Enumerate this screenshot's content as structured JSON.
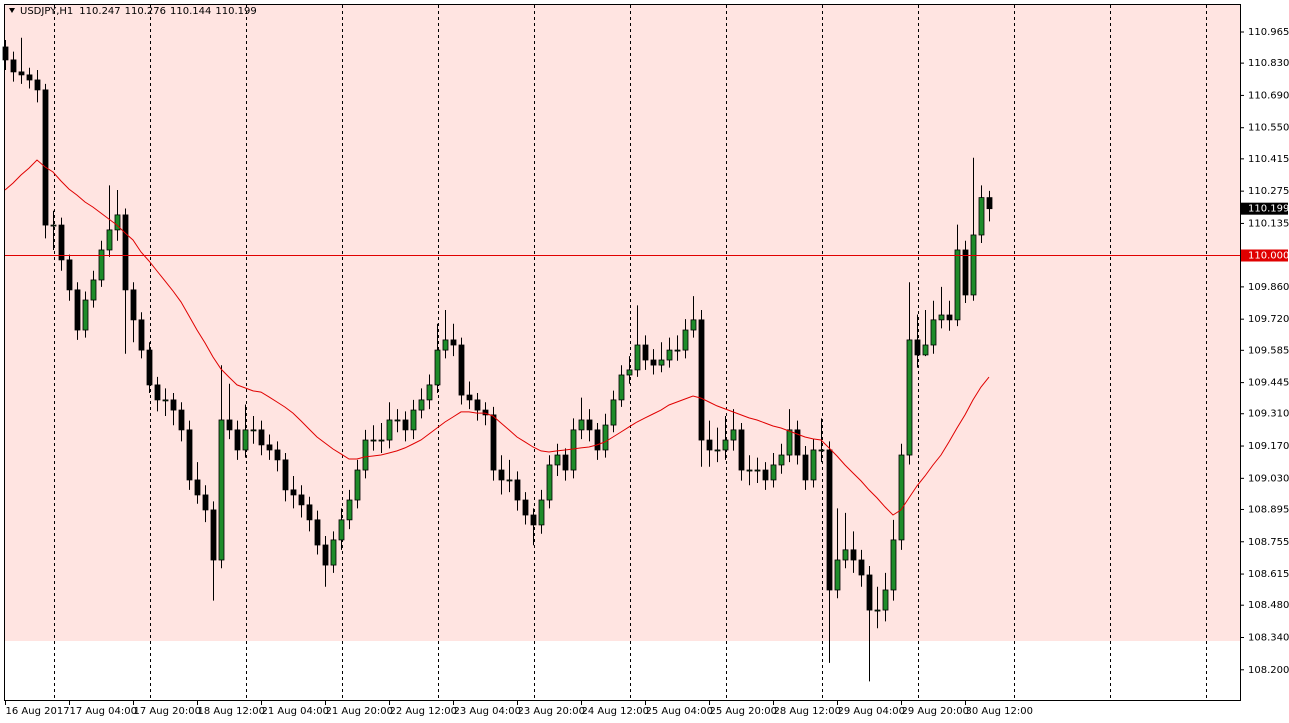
{
  "chart_data": {
    "type": "candlestick",
    "title": "USDJPY,H1",
    "ohlc_readout": [
      110.247,
      110.276,
      110.144,
      110.199
    ],
    "up_color": "#1e8c2a",
    "down_color": "#000000",
    "xlim": [
      -0.625,
      154.375
    ],
    "ylim": [
      108.069,
      111.082
    ],
    "xticks": [
      {
        "value": 0,
        "label": "16 Aug 2017"
      },
      {
        "value": 8,
        "label": "17 Aug 04:00"
      },
      {
        "value": 16,
        "label": "17 Aug 20:00"
      },
      {
        "value": 24,
        "label": "18 Aug 12:00"
      },
      {
        "value": 32,
        "label": "21 Aug 04:00"
      },
      {
        "value": 40,
        "label": "21 Aug 20:00"
      },
      {
        "value": 48,
        "label": "22 Aug 12:00"
      },
      {
        "value": 56,
        "label": "23 Aug 04:00"
      },
      {
        "value": 64,
        "label": "23 Aug 20:00"
      },
      {
        "value": 72,
        "label": "24 Aug 12:00"
      },
      {
        "value": 80,
        "label": "25 Aug 04:00"
      },
      {
        "value": 88,
        "label": "25 Aug 20:00"
      },
      {
        "value": 96,
        "label": "28 Aug 12:00"
      },
      {
        "value": 104,
        "label": "29 Aug 04:00"
      },
      {
        "value": 112,
        "label": "29 Aug 20:00"
      },
      {
        "value": 120,
        "label": "30 Aug 12:00"
      }
    ],
    "yticks": [
      110.965,
      {
        "value": 110.83,
        "label": "110.830"
      },
      {
        "value": 110.69,
        "label": "110.690"
      },
      {
        "value": 110.55,
        "label": "110.550"
      },
      110.415,
      110.275,
      110.135,
      {
        "value": 109.86,
        "label": "109.860"
      },
      {
        "value": 109.72,
        "label": "109.720"
      },
      109.585,
      109.445,
      {
        "value": 109.31,
        "label": "109.310"
      },
      {
        "value": 109.17,
        "label": "109.170"
      },
      {
        "value": 109.03,
        "label": "109.030"
      },
      108.895,
      108.755,
      108.615,
      {
        "value": 108.48,
        "label": "108.480"
      },
      {
        "value": 108.34,
        "label": "108.340"
      },
      {
        "value": 108.2,
        "label": "108.200"
      }
    ],
    "hline": {
      "value": 110,
      "label": "110.000",
      "color": "#e00000"
    },
    "last_price": 110.199,
    "moving_average": {
      "color": "#e00000",
      "values": [
        110.28,
        110.31,
        110.345,
        110.375,
        110.41,
        110.38,
        110.358,
        110.319,
        110.284,
        110.258,
        110.228,
        110.206,
        110.18,
        110.154,
        110.128,
        110.094,
        110.063,
        110.011,
        109.972,
        109.929,
        109.886,
        109.842,
        109.795,
        109.734,
        109.673,
        109.617,
        109.556,
        109.504,
        109.469,
        109.435,
        109.422,
        109.409,
        109.404,
        109.383,
        109.361,
        109.339,
        109.313,
        109.279,
        109.244,
        109.209,
        109.183,
        109.157,
        109.136,
        109.114,
        109.114,
        109.123,
        109.127,
        109.131,
        109.14,
        109.149,
        109.162,
        109.179,
        109.196,
        109.222,
        109.248,
        109.274,
        109.296,
        109.318,
        109.318,
        109.313,
        109.313,
        109.3,
        109.27,
        109.24,
        109.209,
        109.188,
        109.166,
        109.149,
        109.144,
        109.149,
        109.153,
        109.157,
        109.162,
        109.166,
        109.175,
        109.188,
        109.209,
        109.231,
        109.253,
        109.274,
        109.292,
        109.309,
        109.326,
        109.348,
        109.361,
        109.374,
        109.387,
        109.378,
        109.361,
        109.344,
        109.331,
        109.318,
        109.305,
        109.292,
        109.283,
        109.27,
        109.257,
        109.248,
        109.235,
        109.222,
        109.209,
        109.201,
        109.196,
        109.162,
        109.127,
        109.088,
        109.053,
        109.019,
        108.98,
        108.945,
        108.906,
        108.871,
        108.893,
        108.945,
        108.997,
        109.04,
        109.088,
        109.131,
        109.188,
        109.248,
        109.305,
        109.37,
        109.426,
        109.469
      ]
    },
    "candles": [
      [
        110.9,
        110.93,
        110.8,
        110.844
      ],
      [
        110.844,
        110.88,
        110.75,
        110.792
      ],
      [
        110.792,
        110.94,
        110.74,
        110.779
      ],
      [
        110.779,
        110.81,
        110.72,
        110.757
      ],
      [
        110.757,
        110.8,
        110.66,
        110.714
      ],
      [
        110.714,
        110.74,
        110.07,
        110.128
      ],
      [
        110.128,
        110.19,
        110.02,
        110.128
      ],
      [
        110.128,
        110.16,
        109.93,
        109.977
      ],
      [
        109.977,
        110.0,
        109.8,
        109.847
      ],
      [
        109.847,
        109.88,
        109.63,
        109.673
      ],
      [
        109.673,
        109.84,
        109.64,
        109.803
      ],
      [
        109.803,
        109.93,
        109.77,
        109.89
      ],
      [
        109.89,
        110.06,
        109.86,
        110.02
      ],
      [
        110.02,
        110.3,
        109.99,
        110.107
      ],
      [
        110.107,
        110.28,
        110.06,
        110.172
      ],
      [
        110.172,
        110.2,
        109.57,
        109.847
      ],
      [
        109.847,
        109.88,
        109.62,
        109.717
      ],
      [
        109.717,
        109.75,
        109.55,
        109.586
      ],
      [
        109.586,
        109.62,
        109.4,
        109.435
      ],
      [
        109.435,
        109.47,
        109.32,
        109.37
      ],
      [
        109.37,
        109.42,
        109.3,
        109.37
      ],
      [
        109.37,
        109.4,
        109.26,
        109.326
      ],
      [
        109.326,
        109.36,
        109.19,
        109.24
      ],
      [
        109.24,
        109.28,
        108.98,
        109.023
      ],
      [
        109.023,
        109.1,
        108.92,
        108.958
      ],
      [
        108.958,
        109.0,
        108.84,
        108.893
      ],
      [
        108.893,
        108.93,
        108.5,
        108.676
      ],
      [
        108.676,
        109.52,
        108.64,
        109.283
      ],
      [
        109.283,
        109.44,
        109.2,
        109.24
      ],
      [
        109.24,
        109.28,
        109.11,
        109.153
      ],
      [
        109.153,
        109.35,
        109.12,
        109.24
      ],
      [
        109.24,
        109.3,
        109.18,
        109.24
      ],
      [
        109.24,
        109.28,
        109.13,
        109.175
      ],
      [
        109.175,
        109.22,
        109.11,
        109.153
      ],
      [
        109.153,
        109.19,
        109.06,
        109.11
      ],
      [
        109.11,
        109.14,
        108.93,
        108.98
      ],
      [
        108.98,
        109.04,
        108.9,
        108.958
      ],
      [
        108.958,
        109.0,
        108.86,
        108.915
      ],
      [
        108.915,
        108.95,
        108.8,
        108.85
      ],
      [
        108.85,
        108.89,
        108.7,
        108.741
      ],
      [
        108.741,
        108.78,
        108.56,
        108.654
      ],
      [
        108.654,
        108.8,
        108.62,
        108.763
      ],
      [
        108.763,
        108.9,
        108.72,
        108.85
      ],
      [
        108.85,
        108.98,
        108.81,
        108.936
      ],
      [
        108.936,
        109.11,
        108.9,
        109.066
      ],
      [
        109.066,
        109.24,
        109.03,
        109.196
      ],
      [
        109.196,
        109.26,
        109.15,
        109.196
      ],
      [
        109.196,
        109.27,
        109.14,
        109.196
      ],
      [
        109.196,
        109.36,
        109.16,
        109.283
      ],
      [
        109.283,
        109.33,
        109.23,
        109.283
      ],
      [
        109.283,
        109.32,
        109.19,
        109.24
      ],
      [
        109.24,
        109.37,
        109.2,
        109.326
      ],
      [
        109.326,
        109.42,
        109.29,
        109.37
      ],
      [
        109.37,
        109.48,
        109.33,
        109.435
      ],
      [
        109.435,
        109.7,
        109.4,
        109.586
      ],
      [
        109.586,
        109.76,
        109.55,
        109.63
      ],
      [
        109.63,
        109.7,
        109.56,
        109.608
      ],
      [
        109.608,
        109.64,
        109.35,
        109.391
      ],
      [
        109.391,
        109.45,
        109.33,
        109.37
      ],
      [
        109.37,
        109.4,
        109.28,
        109.326
      ],
      [
        109.326,
        109.36,
        109.26,
        109.305
      ],
      [
        109.305,
        109.34,
        109.02,
        109.066
      ],
      [
        109.066,
        109.13,
        108.96,
        109.023
      ],
      [
        109.023,
        109.11,
        108.97,
        109.023
      ],
      [
        109.023,
        109.06,
        108.89,
        108.936
      ],
      [
        108.936,
        108.97,
        108.83,
        108.871
      ],
      [
        108.871,
        108.9,
        108.74,
        108.828
      ],
      [
        108.828,
        108.98,
        108.79,
        108.936
      ],
      [
        108.936,
        109.13,
        108.9,
        109.088
      ],
      [
        109.088,
        109.18,
        109.04,
        109.131
      ],
      [
        109.131,
        109.16,
        109.02,
        109.066
      ],
      [
        109.066,
        109.29,
        109.03,
        109.24
      ],
      [
        109.24,
        109.38,
        109.2,
        109.283
      ],
      [
        109.283,
        109.33,
        109.19,
        109.24
      ],
      [
        109.24,
        109.27,
        109.11,
        109.153
      ],
      [
        109.153,
        109.31,
        109.12,
        109.261
      ],
      [
        109.261,
        109.41,
        109.23,
        109.37
      ],
      [
        109.37,
        109.52,
        109.34,
        109.478
      ],
      [
        109.478,
        109.56,
        109.44,
        109.5
      ],
      [
        109.5,
        109.78,
        109.47,
        109.608
      ],
      [
        109.608,
        109.65,
        109.5,
        109.543
      ],
      [
        109.543,
        109.59,
        109.48,
        109.521
      ],
      [
        109.521,
        109.62,
        109.49,
        109.543
      ],
      [
        109.543,
        109.64,
        109.51,
        109.586
      ],
      [
        109.586,
        109.65,
        109.54,
        109.586
      ],
      [
        109.586,
        109.72,
        109.55,
        109.673
      ],
      [
        109.673,
        109.82,
        109.64,
        109.717
      ],
      [
        109.717,
        109.76,
        109.08,
        109.196
      ],
      [
        109.196,
        109.28,
        109.08,
        109.153
      ],
      [
        109.153,
        109.25,
        109.1,
        109.153
      ],
      [
        109.153,
        109.3,
        109.11,
        109.196
      ],
      [
        109.196,
        109.33,
        109.15,
        109.24
      ],
      [
        109.24,
        109.27,
        109.02,
        109.066
      ],
      [
        109.066,
        109.13,
        109.0,
        109.066
      ],
      [
        109.066,
        109.12,
        109.01,
        109.066
      ],
      [
        109.066,
        109.1,
        108.98,
        109.023
      ],
      [
        109.023,
        109.14,
        108.99,
        109.088
      ],
      [
        109.088,
        109.18,
        109.05,
        109.131
      ],
      [
        109.131,
        109.33,
        109.1,
        109.24
      ],
      [
        109.24,
        109.28,
        109.09,
        109.131
      ],
      [
        109.131,
        109.17,
        108.98,
        109.023
      ],
      [
        109.023,
        109.2,
        108.99,
        109.153
      ],
      [
        109.153,
        109.29,
        109.1,
        109.153
      ],
      [
        109.153,
        109.19,
        108.23,
        108.546
      ],
      [
        108.546,
        108.9,
        108.51,
        108.676
      ],
      [
        108.676,
        108.88,
        108.64,
        108.72
      ],
      [
        108.72,
        108.8,
        108.62,
        108.676
      ],
      [
        108.676,
        108.72,
        108.56,
        108.611
      ],
      [
        108.611,
        108.65,
        108.15,
        108.459
      ],
      [
        108.459,
        108.56,
        108.38,
        108.459
      ],
      [
        108.459,
        108.62,
        108.41,
        108.546
      ],
      [
        108.546,
        108.85,
        108.5,
        108.763
      ],
      [
        108.763,
        109.18,
        108.72,
        109.131
      ],
      [
        109.131,
        109.88,
        109.09,
        109.63
      ],
      [
        109.63,
        109.74,
        109.51,
        109.565
      ],
      [
        109.565,
        109.76,
        109.56,
        109.608
      ],
      [
        109.608,
        109.8,
        109.57,
        109.717
      ],
      [
        109.717,
        109.86,
        109.68,
        109.738
      ],
      [
        109.738,
        109.8,
        109.67,
        109.717
      ],
      [
        109.717,
        110.13,
        109.69,
        110.02
      ],
      [
        110.02,
        110.06,
        109.79,
        109.825
      ],
      [
        109.825,
        110.42,
        109.8,
        110.085
      ],
      [
        110.085,
        110.3,
        110.05,
        110.247
      ],
      [
        110.247,
        110.276,
        110.144,
        110.199
      ]
    ]
  }
}
